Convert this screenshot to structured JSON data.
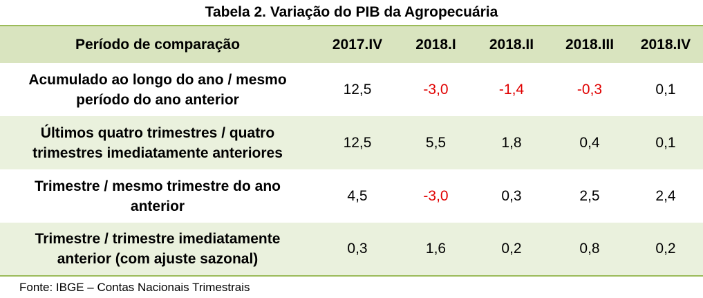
{
  "table": {
    "title": "Tabela 2.  Variação do PIB da Agropecuária",
    "header": {
      "label": "Período de comparação",
      "periods": [
        "2017.IV",
        "2018.I",
        "2018.II",
        "2018.III",
        "2018.IV"
      ]
    },
    "rows": [
      {
        "label_line1": "Acumulado ao longo do ano / mesmo",
        "label_line2": "período do ano anterior",
        "values": [
          "12,5",
          "-3,0",
          "-1,4",
          "-0,3",
          "0,1"
        ]
      },
      {
        "label_line1": "Últimos quatro trimestres / quatro",
        "label_line2": "trimestres imediatamente anteriores",
        "values": [
          "12,5",
          "5,5",
          "1,8",
          "0,4",
          "0,1"
        ]
      },
      {
        "label_line1": "Trimestre / mesmo trimestre do ano",
        "label_line2": "anterior",
        "values": [
          "4,5",
          "-3,0",
          "0,3",
          "2,5",
          "2,4"
        ]
      },
      {
        "label_line1": "Trimestre / trimestre imediatamente",
        "label_line2": "anterior (com ajuste sazonal)",
        "values": [
          "0,3",
          "1,6",
          "0,2",
          "0,8",
          "0,2"
        ]
      }
    ],
    "source": "Fonte: IBGE – Contas Nacionais Trimestrais"
  },
  "colors": {
    "header_fill": "#d9e4bf",
    "band_fill": "#eaf1dd",
    "rule": "#9bbb59",
    "negative_text": "#e00000"
  }
}
